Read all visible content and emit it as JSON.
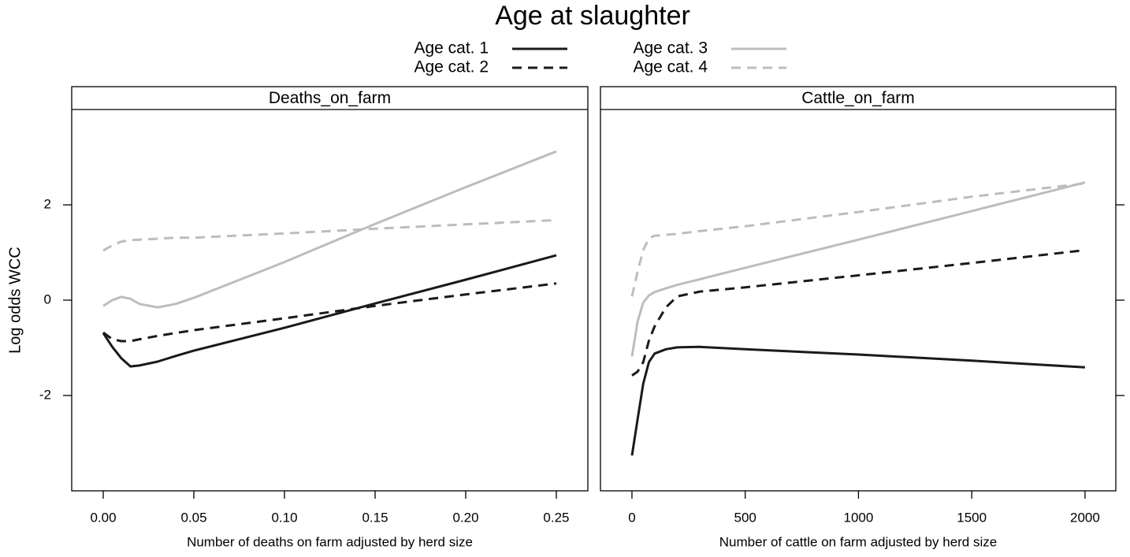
{
  "title": "Age at slaughter",
  "y_label": "Log odds WCC",
  "legend": [
    {
      "name": "Age cat. 1",
      "color": "#1a1a1a",
      "linestyle": "solid"
    },
    {
      "name": "Age cat. 2",
      "color": "#1a1a1a",
      "linestyle": "dashed"
    },
    {
      "name": "Age cat. 3",
      "color": "#bdbdbd",
      "linestyle": "solid"
    },
    {
      "name": "Age cat. 4",
      "color": "#bdbdbd",
      "linestyle": "dashed"
    }
  ],
  "chart_data": [
    {
      "type": "line",
      "strip": "Deaths_on_farm",
      "x_label": "Number of deaths on farm adjusted by herd size",
      "x": [
        0,
        0.005,
        0.01,
        0.015,
        0.02,
        0.03,
        0.04,
        0.05,
        0.1,
        0.15,
        0.2,
        0.25
      ],
      "xlim": [
        -0.0174,
        0.2674
      ],
      "xticks": [
        {
          "value": 0,
          "label": "0.00"
        },
        0.05,
        {
          "value": 0.1,
          "label": "0.10"
        },
        0.15,
        {
          "value": 0.2,
          "label": "0.20"
        },
        0.25
      ],
      "ylim": [
        -4,
        4
      ],
      "yticks": [
        -2,
        0,
        2
      ],
      "series": [
        {
          "values": [
            -0.69,
            -0.98,
            -1.22,
            -1.39,
            -1.37,
            -1.29,
            -1.17,
            -1.06,
            -0.58,
            -0.07,
            0.43,
            0.94
          ]
        },
        {
          "values": [
            -0.68,
            -0.82,
            -0.86,
            -0.86,
            -0.82,
            -0.75,
            -0.69,
            -0.63,
            -0.38,
            -0.12,
            0.12,
            0.35
          ]
        },
        {
          "values": [
            -0.12,
            0.0,
            0.07,
            0.03,
            -0.08,
            -0.15,
            -0.08,
            0.05,
            0.8,
            1.6,
            2.37,
            3.12
          ]
        },
        {
          "values": [
            1.04,
            1.15,
            1.23,
            1.26,
            1.27,
            1.29,
            1.31,
            1.31,
            1.4,
            1.5,
            1.59,
            1.68
          ]
        }
      ]
    },
    {
      "type": "line",
      "strip": "Cattle_on_farm",
      "x_label": "Number of cattle on farm adjusted by herd size",
      "x": [
        0,
        25,
        50,
        75,
        100,
        150,
        200,
        300,
        500,
        1000,
        1500,
        2000
      ],
      "xlim": [
        -139,
        2136
      ],
      "xticks": [
        0,
        500,
        1000,
        1500,
        2000
      ],
      "ylim": [
        -4,
        4
      ],
      "yticks": [
        -2,
        0,
        2
      ],
      "series": [
        {
          "values": [
            -3.26,
            -2.5,
            -1.75,
            -1.3,
            -1.12,
            -1.03,
            -0.99,
            -0.98,
            -1.03,
            -1.14,
            -1.27,
            -1.41
          ]
        },
        {
          "values": [
            -1.58,
            -1.5,
            -1.3,
            -0.85,
            -0.55,
            -0.15,
            0.08,
            0.18,
            0.27,
            0.52,
            0.78,
            1.05
          ]
        },
        {
          "values": [
            -1.18,
            -0.45,
            -0.05,
            0.1,
            0.17,
            0.25,
            0.32,
            0.44,
            0.68,
            1.27,
            1.87,
            2.47
          ]
        },
        {
          "values": [
            0.08,
            0.6,
            1.05,
            1.3,
            1.35,
            1.37,
            1.39,
            1.45,
            1.55,
            1.85,
            2.17,
            2.45
          ]
        }
      ]
    }
  ]
}
